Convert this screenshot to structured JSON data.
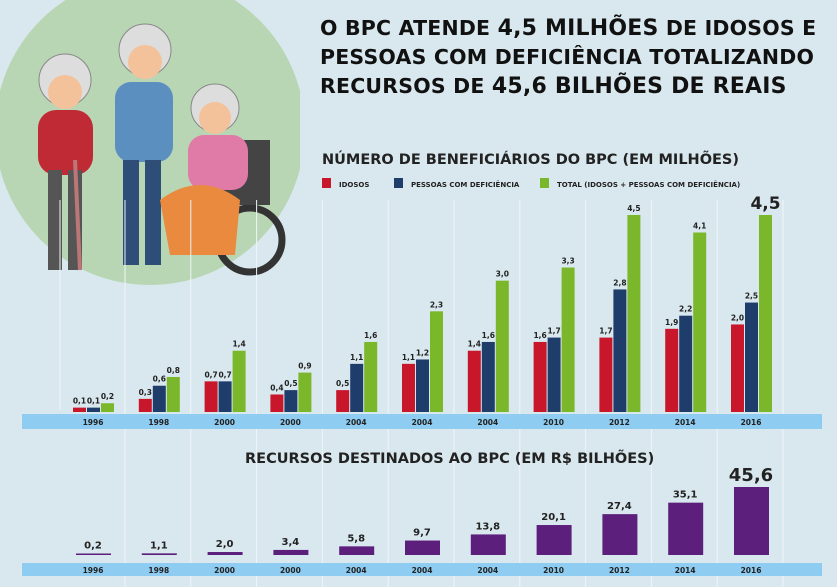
{
  "headline": {
    "l1a": "O BPC ATENDE ",
    "l1b": "4,5 MILHÕES",
    "l1c": " DE IDOSOS E",
    "l2": "PESSOAS COM DEFICIÊNCIA TOTALIZANDO",
    "l3a": "RECURSOS DE ",
    "l3b": "45,6 BILHÕES DE REAIS"
  },
  "colors": {
    "idosos": "#c8172b",
    "deficiencia": "#1f3d6b",
    "total": "#7bb72b",
    "recursos": "#5d1f7c",
    "axis": "#8ecdf1",
    "bg": "#d9e8ee"
  },
  "chart_data": [
    {
      "type": "bar",
      "title": "NÚMERO DE BENEFICIÁRIOS DO BPC (EM MILHÕES)",
      "legend_position": "top",
      "categories": [
        "1996",
        "1998",
        "2000",
        "2000",
        "2004",
        "2004",
        "2004",
        "2010",
        "2012",
        "2014",
        "2016"
      ],
      "series": [
        {
          "name": "IDOSOS",
          "labels": [
            "0,1",
            "0,3",
            "0,7",
            "0,4",
            "0,5",
            "1,1",
            "1,4",
            "1,6",
            "1,7",
            "1,9",
            "2,0"
          ],
          "values": [
            0.1,
            0.3,
            0.7,
            0.4,
            0.5,
            1.1,
            1.4,
            1.6,
            1.7,
            1.9,
            2.0
          ]
        },
        {
          "name": "PESSOAS COM DEFICIÊNCIA",
          "labels": [
            "0,1",
            "0,6",
            "0,7",
            "0,5",
            "1,1",
            "1,2",
            "1,6",
            "1,7",
            "2,8",
            "2,2",
            "2,5"
          ],
          "values": [
            0.1,
            0.6,
            0.7,
            0.5,
            1.1,
            1.2,
            1.6,
            1.7,
            2.8,
            2.2,
            2.5
          ]
        },
        {
          "name": "TOTAL (IDOSOS + PESSOAS COM DEFICIÊNCIA)",
          "labels": [
            "0,2",
            "0,8",
            "1,4",
            "0,9",
            "1,6",
            "2,3",
            "3,0",
            "3,3",
            "4,5",
            "4,1",
            "4,5"
          ],
          "values": [
            0.2,
            0.8,
            1.4,
            0.9,
            1.6,
            2.3,
            3.0,
            3.3,
            4.5,
            4.1,
            4.5
          ]
        }
      ],
      "ylim": [
        0,
        4.5
      ]
    },
    {
      "type": "bar",
      "title": "RECURSOS DESTINADOS AO  BPC (EM R$ BILHÕES)",
      "categories": [
        "1996",
        "1998",
        "2000",
        "2000",
        "2004",
        "2004",
        "2004",
        "2010",
        "2012",
        "2014",
        "2016"
      ],
      "labels": [
        "0,2",
        "1,1",
        "2,0",
        "3,4",
        "5,8",
        "9,7",
        "13,8",
        "20,1",
        "27,4",
        "35,1",
        "45,6"
      ],
      "values": [
        0.2,
        1.1,
        2.0,
        3.4,
        5.8,
        9.7,
        13.8,
        20.1,
        27.4,
        35.1,
        45.6
      ],
      "ylim": [
        0,
        45.6
      ]
    }
  ]
}
